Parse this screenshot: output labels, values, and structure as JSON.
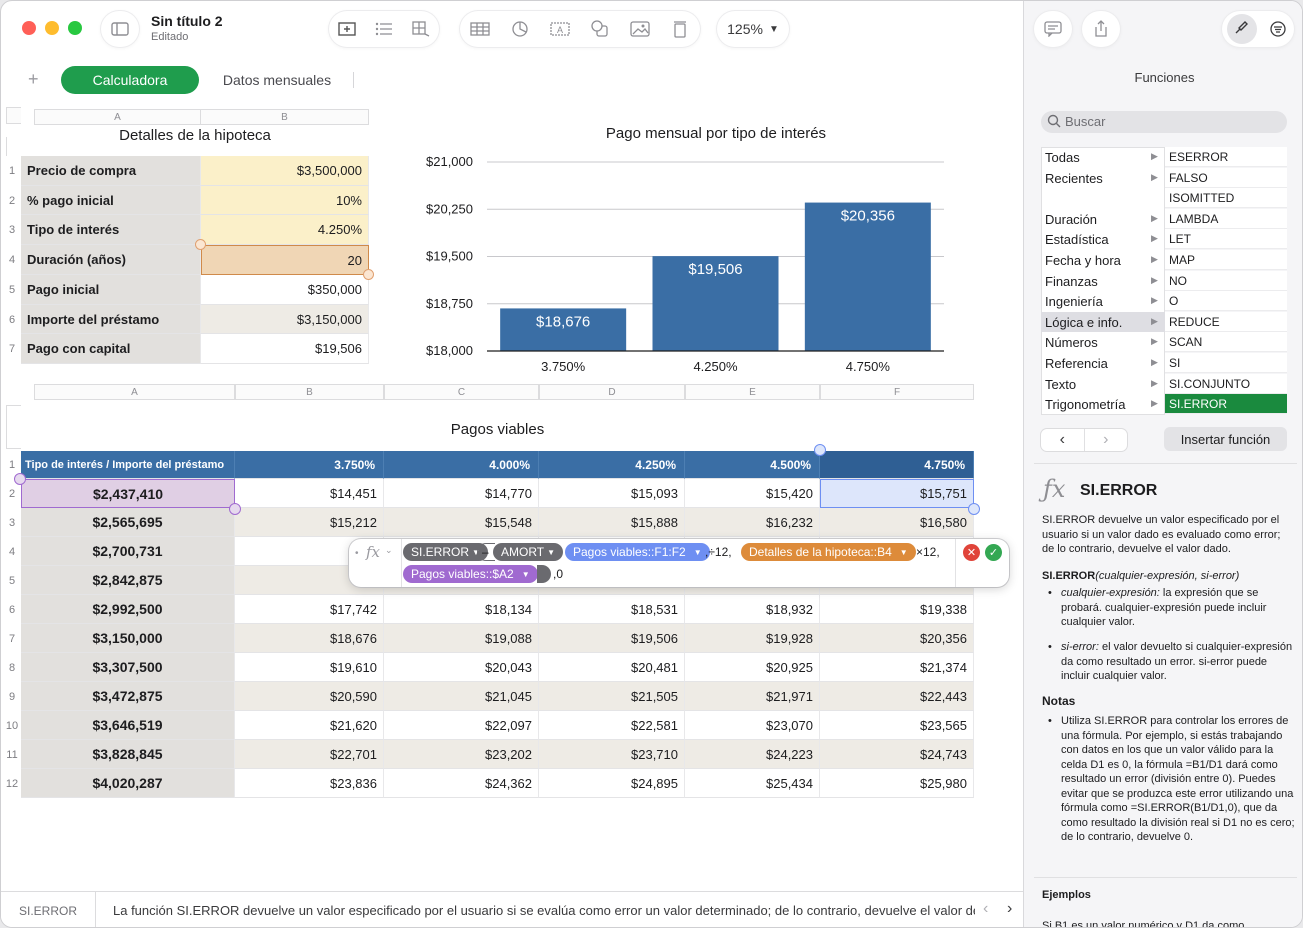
{
  "window": {
    "title": "Sin título 2",
    "subtitle": "Editado",
    "zoom": "125%"
  },
  "sheets": {
    "add": "+",
    "tabs": [
      {
        "label": "Calculadora",
        "active": true
      },
      {
        "label": "Datos mensuales",
        "active": false
      }
    ]
  },
  "table1": {
    "title": "Detalles de la hipoteca",
    "col_headers": [
      "A",
      "B"
    ],
    "rows": [
      {
        "n": "1",
        "label": "Precio de compra",
        "value": "$3,500,000"
      },
      {
        "n": "2",
        "label": "% pago inicial",
        "value": "10%"
      },
      {
        "n": "3",
        "label": "Tipo de interés",
        "value": "4.250%"
      },
      {
        "n": "4",
        "label": "Duración (años)",
        "value": "20"
      },
      {
        "n": "5",
        "label": "Pago inicial",
        "value": "$350,000"
      },
      {
        "n": "6",
        "label": "Importe del préstamo",
        "value": "$3,150,000"
      },
      {
        "n": "7",
        "label": "Pago con capital",
        "value": "$19,506"
      }
    ]
  },
  "chart_data": {
    "type": "bar",
    "title": "Pago mensual por tipo de interés",
    "categories": [
      "3.750%",
      "4.250%",
      "4.750%"
    ],
    "values": [
      18676,
      19506,
      20356
    ],
    "value_labels": [
      "$18,676",
      "$19,506",
      "$20,356"
    ],
    "y_ticks": [
      "$21,000",
      "$20,250",
      "$19,500",
      "$18,750",
      "$18,000"
    ],
    "y_tick_values": [
      21000,
      20250,
      19500,
      18750,
      18000
    ],
    "ylim": [
      18000,
      21000
    ],
    "bar_color": "#3a6ea5",
    "grid": true
  },
  "table2": {
    "title": "Pagos viables",
    "col_headers": [
      "A",
      "B",
      "C",
      "D",
      "E",
      "F"
    ],
    "header_row": [
      "Tipo de interés / Importe del préstamo",
      "3.750%",
      "4.000%",
      "4.250%",
      "4.500%",
      "4.750%"
    ],
    "rows": [
      {
        "n": "2",
        "cells": [
          "$2,437,410",
          "$14,451",
          "$14,770",
          "$15,093",
          "$15,420",
          "$15,751"
        ]
      },
      {
        "n": "3",
        "cells": [
          "$2,565,695",
          "$15,212",
          "$15,548",
          "$15,888",
          "$16,232",
          "$16,580"
        ]
      },
      {
        "n": "4",
        "cells": [
          "$2,700,731",
          "$16",
          "",
          "",
          "",
          ""
        ]
      },
      {
        "n": "5",
        "cells": [
          "$2,842,875",
          "$16",
          "",
          "",
          "",
          ""
        ]
      },
      {
        "n": "6",
        "cells": [
          "$2,992,500",
          "$17,742",
          "$18,134",
          "$18,531",
          "$18,932",
          "$19,338"
        ]
      },
      {
        "n": "7",
        "cells": [
          "$3,150,000",
          "$18,676",
          "$19,088",
          "$19,506",
          "$19,928",
          "$20,356"
        ]
      },
      {
        "n": "8",
        "cells": [
          "$3,307,500",
          "$19,610",
          "$20,043",
          "$20,481",
          "$20,925",
          "$21,374"
        ]
      },
      {
        "n": "9",
        "cells": [
          "$3,472,875",
          "$20,590",
          "$21,045",
          "$21,505",
          "$21,971",
          "$22,443"
        ]
      },
      {
        "n": "10",
        "cells": [
          "$3,646,519",
          "$21,620",
          "$22,097",
          "$22,581",
          "$23,070",
          "$23,565"
        ]
      },
      {
        "n": "11",
        "cells": [
          "$3,828,845",
          "$22,701",
          "$23,202",
          "$23,710",
          "$24,223",
          "$24,743"
        ]
      },
      {
        "n": "12",
        "cells": [
          "$4,020,287",
          "$23,836",
          "$24,362",
          "$24,895",
          "$25,434",
          "$25,980"
        ]
      }
    ]
  },
  "formula": {
    "fx": "fx",
    "fn": "SI.ERROR",
    "minus": "–",
    "amort": "AMORT",
    "ref1": "Pagos viables::F1:F2",
    "sep1": ",÷12,",
    "ref2": "Detalles de la hipoteca::B4",
    "sep2": "×12,",
    "ref3": "Pagos viables::$A2",
    "tail": ",0"
  },
  "sidebar": {
    "title": "Funciones",
    "search_placeholder": "Buscar",
    "categories": [
      "Todas",
      "Recientes",
      "",
      "Duración",
      "Estadística",
      "Fecha y hora",
      "Finanzas",
      "Ingeniería",
      "Lógica e info.",
      "Números",
      "Referencia",
      "Texto",
      "Trigonometría"
    ],
    "functions": [
      "ESERROR",
      "FALSO",
      "ISOMITTED",
      "LAMBDA",
      "LET",
      "MAP",
      "NO",
      "O",
      "REDUCE",
      "SCAN",
      "SI",
      "SI.CONJUNTO",
      "SI.ERROR"
    ],
    "selected_category": "Lógica e info.",
    "selected_function": "SI.ERROR",
    "insert_button": "Insertar función",
    "fn_title": "SI.ERROR",
    "fn_desc": "SI.ERROR devuelve un valor especificado por el usuario si un valor dado es evaluado como error; de lo contrario, devuelve el valor dado.",
    "syntax_name": "SI.ERROR",
    "syntax_args": "(cualquier-expresión, si-error)",
    "arg1_name": "cualquier-expresión:",
    "arg1_text": "la expresión que se probará. cualquier-expresión puede incluir cualquier valor.",
    "arg2_name": "si-error:",
    "arg2_text": "el valor devuelto si cualquier-expresión da como resultado un error. si-error puede incluir cualquier valor.",
    "notes_title": "Notas",
    "notes_text": "Utiliza SI.ERROR para controlar los errores de una fórmula. Por ejemplo, si estás trabajando con datos en los que un valor válido para la celda D1 es 0, la fórmula =B1/D1 dará como resultado un error (división entre 0). Puedes evitar que se produzca este error utilizando una fórmula como =SI.ERROR(B1/D1,0), que da como resultado la división real si D1 no es cero; de lo contrario, devuelve 0.",
    "examples_title": "Ejemplos",
    "examples_text": "Si B1 es un valor numérico y D1 da como"
  },
  "statusbar": {
    "fn": "SI.ERROR",
    "text": "La función SI.ERROR devuelve un valor especificado por el usuario si se evalúa como error un valor determinado; de lo contrario, devuelve el valor de"
  },
  "colors": {
    "accent_green": "#1f9d4d",
    "header_blue": "#3a6ea5",
    "input_yellow": "#fbf0c9",
    "label_gray": "#e2e0dd",
    "row_alt": "#eeebe5"
  }
}
